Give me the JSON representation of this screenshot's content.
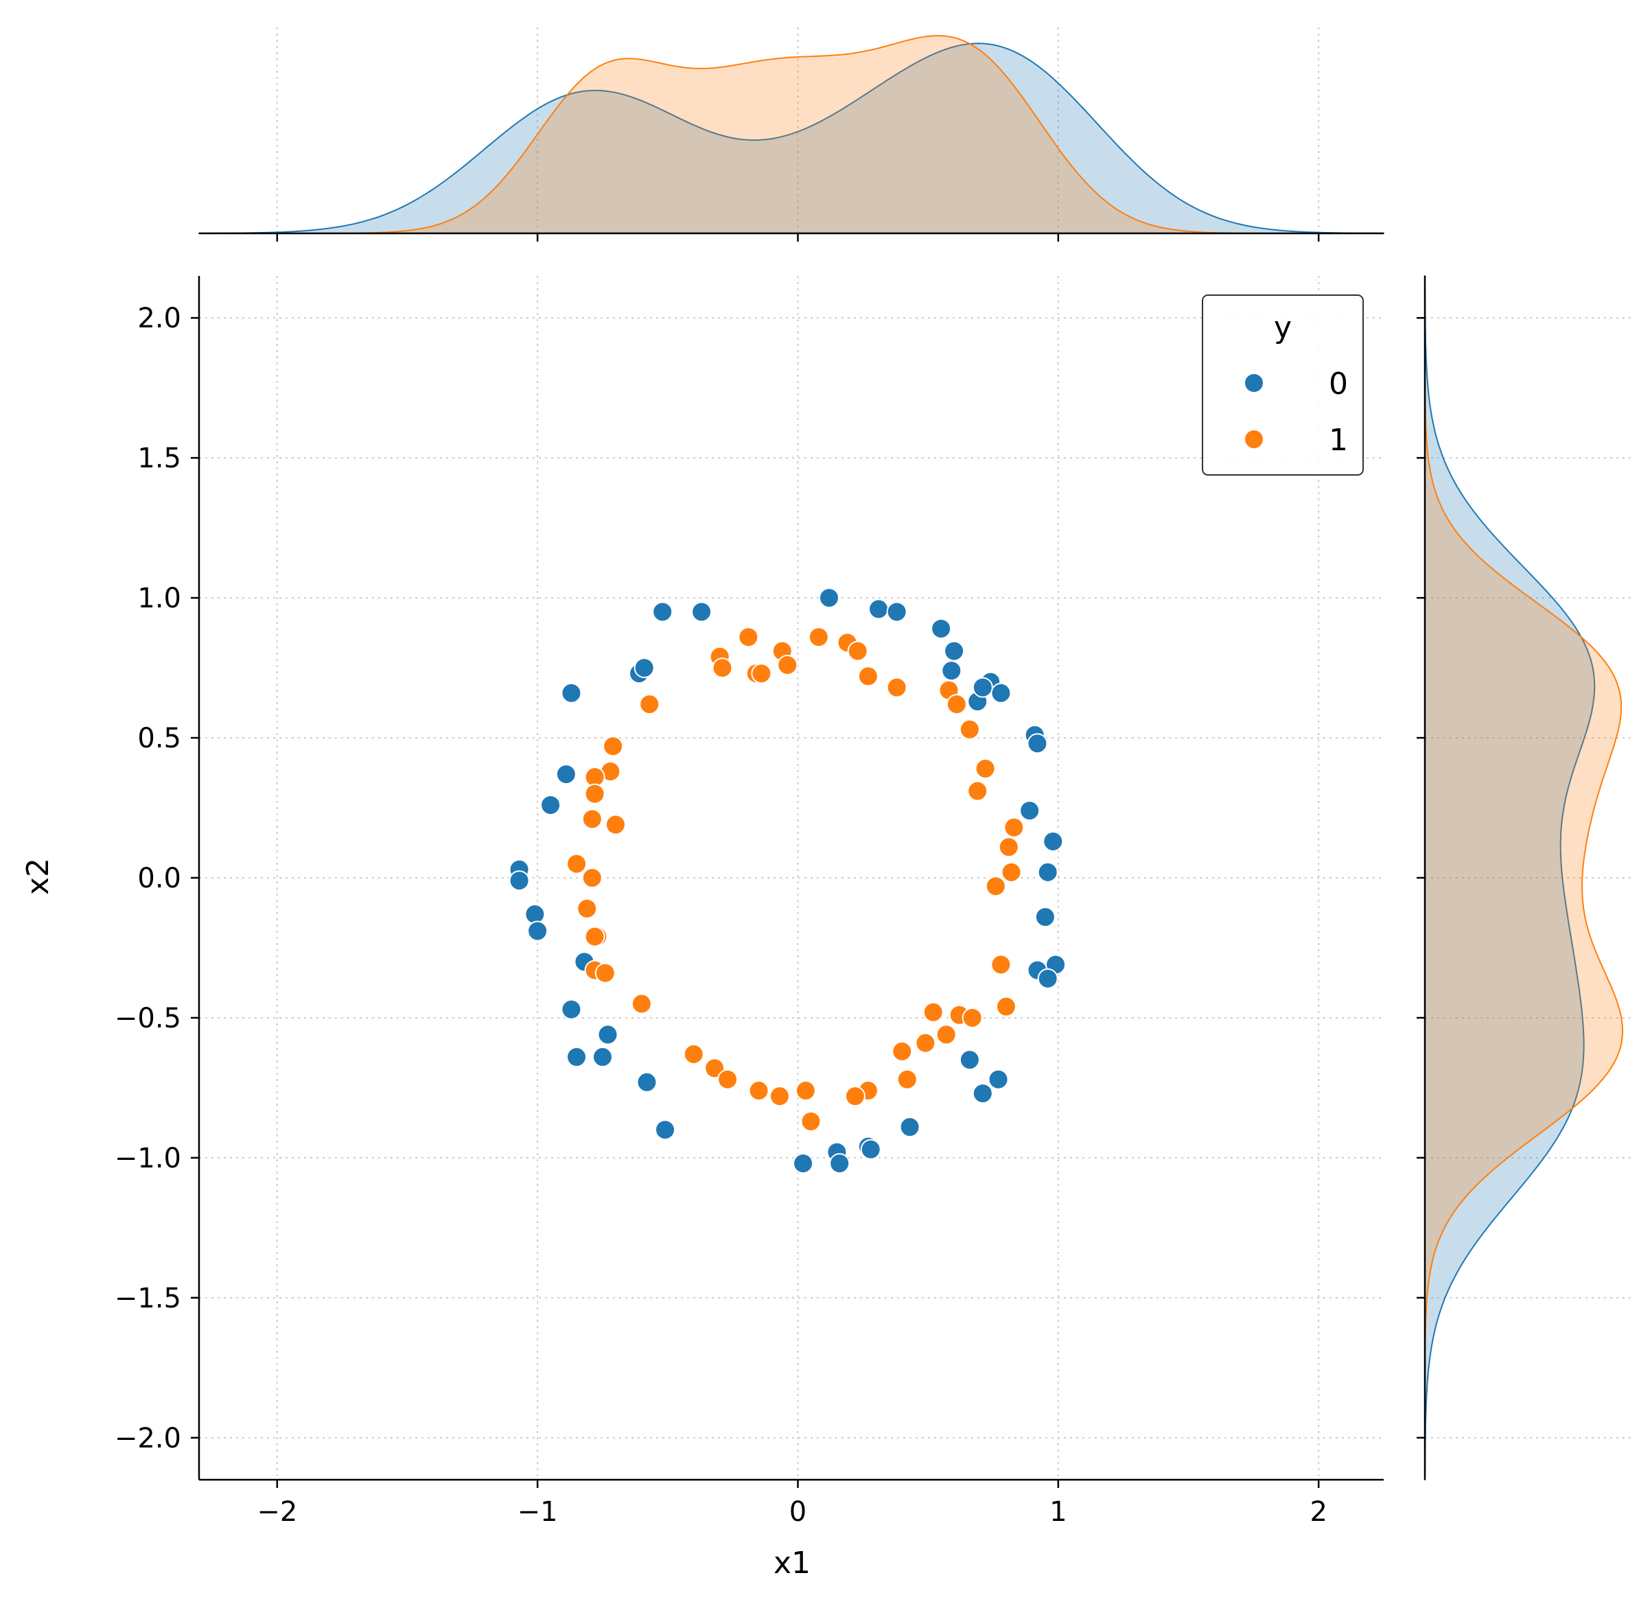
{
  "chart_data": {
    "type": "scatter",
    "subtype": "jointplot",
    "title": "",
    "xlabel": "x1",
    "ylabel": "x2",
    "xlim": [
      -2.3,
      2.25
    ],
    "ylim": [
      -2.15,
      2.15
    ],
    "x_ticks": [
      -2,
      -1,
      0,
      1,
      2
    ],
    "x_tick_labels": [
      "−2",
      "−1",
      "0",
      "1",
      "2"
    ],
    "y_ticks": [
      2.0,
      1.5,
      1.0,
      0.5,
      0.0,
      -0.5,
      -1.0,
      -1.5,
      -2.0
    ],
    "y_tick_labels": [
      "2.0",
      "1.5",
      "1.0",
      "0.5",
      "0.0",
      "−0.5",
      "−1.0",
      "−1.5",
      "−2.0"
    ],
    "grid": true,
    "legend": {
      "title": "y",
      "placement": "top-right"
    },
    "marginals": "kde",
    "series": [
      {
        "name": "0",
        "color": "#1f77b4",
        "points": [
          [
            0.12,
            1.0
          ],
          [
            0.31,
            0.96
          ],
          [
            0.38,
            0.95
          ],
          [
            -0.52,
            0.95
          ],
          [
            -0.37,
            0.95
          ],
          [
            0.55,
            0.89
          ],
          [
            0.6,
            0.81
          ],
          [
            0.59,
            0.74
          ],
          [
            -0.61,
            0.73
          ],
          [
            -0.59,
            0.75
          ],
          [
            0.74,
            0.7
          ],
          [
            0.78,
            0.66
          ],
          [
            0.69,
            0.63
          ],
          [
            0.71,
            0.68
          ],
          [
            -0.87,
            0.66
          ],
          [
            0.91,
            0.51
          ],
          [
            0.92,
            0.48
          ],
          [
            -0.89,
            0.37
          ],
          [
            -0.95,
            0.26
          ],
          [
            0.89,
            0.24
          ],
          [
            0.98,
            0.13
          ],
          [
            0.96,
            0.02
          ],
          [
            -1.07,
            0.03
          ],
          [
            -1.07,
            -0.01
          ],
          [
            -1.01,
            -0.13
          ],
          [
            -1.0,
            -0.19
          ],
          [
            0.95,
            -0.14
          ],
          [
            0.92,
            -0.33
          ],
          [
            0.99,
            -0.31
          ],
          [
            0.96,
            -0.36
          ],
          [
            -0.82,
            -0.3
          ],
          [
            -0.87,
            -0.47
          ],
          [
            -0.73,
            -0.56
          ],
          [
            -0.85,
            -0.64
          ],
          [
            -0.75,
            -0.64
          ],
          [
            0.66,
            -0.65
          ],
          [
            0.77,
            -0.72
          ],
          [
            0.71,
            -0.77
          ],
          [
            -0.58,
            -0.73
          ],
          [
            -0.51,
            -0.9
          ],
          [
            0.43,
            -0.89
          ],
          [
            0.15,
            -0.98
          ],
          [
            0.27,
            -0.96
          ],
          [
            0.28,
            -0.97
          ],
          [
            0.02,
            -1.02
          ],
          [
            0.16,
            -1.02
          ]
        ]
      },
      {
        "name": "1",
        "color": "#ff7f0e",
        "points": [
          [
            0.08,
            0.86
          ],
          [
            -0.19,
            0.86
          ],
          [
            0.19,
            0.84
          ],
          [
            -0.06,
            0.81
          ],
          [
            0.23,
            0.81
          ],
          [
            -0.3,
            0.79
          ],
          [
            -0.29,
            0.75
          ],
          [
            -0.04,
            0.76
          ],
          [
            -0.16,
            0.73
          ],
          [
            -0.14,
            0.73
          ],
          [
            0.27,
            0.72
          ],
          [
            0.38,
            0.68
          ],
          [
            0.58,
            0.67
          ],
          [
            0.61,
            0.62
          ],
          [
            -0.57,
            0.62
          ],
          [
            0.66,
            0.53
          ],
          [
            -0.71,
            0.47
          ],
          [
            0.72,
            0.39
          ],
          [
            -0.72,
            0.38
          ],
          [
            -0.78,
            0.36
          ],
          [
            0.69,
            0.31
          ],
          [
            -0.78,
            0.3
          ],
          [
            -0.79,
            0.21
          ],
          [
            -0.7,
            0.19
          ],
          [
            0.83,
            0.18
          ],
          [
            0.81,
            0.11
          ],
          [
            -0.85,
            0.05
          ],
          [
            0.82,
            0.02
          ],
          [
            -0.79,
            0.0
          ],
          [
            0.76,
            -0.03
          ],
          [
            -0.81,
            -0.11
          ],
          [
            -0.77,
            -0.21
          ],
          [
            -0.78,
            -0.21
          ],
          [
            0.78,
            -0.31
          ],
          [
            -0.78,
            -0.33
          ],
          [
            -0.74,
            -0.34
          ],
          [
            -0.6,
            -0.45
          ],
          [
            0.8,
            -0.46
          ],
          [
            0.52,
            -0.48
          ],
          [
            0.62,
            -0.49
          ],
          [
            0.67,
            -0.5
          ],
          [
            0.57,
            -0.56
          ],
          [
            0.49,
            -0.59
          ],
          [
            -0.4,
            -0.63
          ],
          [
            0.4,
            -0.62
          ],
          [
            -0.32,
            -0.68
          ],
          [
            0.42,
            -0.72
          ],
          [
            -0.27,
            -0.72
          ],
          [
            -0.15,
            -0.76
          ],
          [
            0.03,
            -0.76
          ],
          [
            0.27,
            -0.76
          ],
          [
            -0.07,
            -0.78
          ],
          [
            0.22,
            -0.78
          ],
          [
            0.05,
            -0.87
          ]
        ]
      }
    ]
  }
}
